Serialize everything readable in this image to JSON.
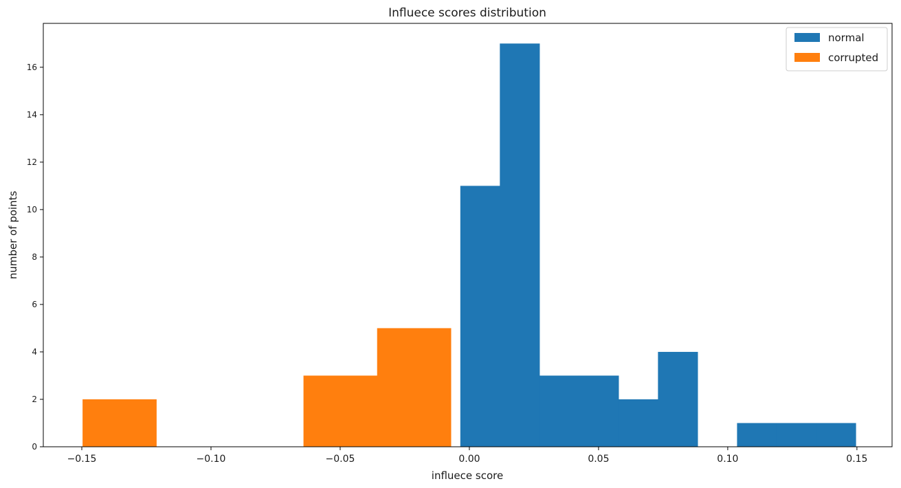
{
  "chart_data": {
    "type": "bar",
    "title": "Influece scores distribution",
    "xlabel": "influece score",
    "ylabel": "number of points",
    "xlim": [
      -0.1649,
      0.1636
    ],
    "ylim": [
      0,
      17.85
    ],
    "xticks": [
      -0.15,
      -0.1,
      -0.05,
      0.0,
      0.05,
      0.1,
      0.15
    ],
    "xtick_labels": [
      "−0.15",
      "−0.10",
      "−0.05",
      "0.00",
      "0.05",
      "0.10",
      "0.15"
    ],
    "yticks": [
      0,
      2,
      4,
      6,
      8,
      10,
      12,
      14,
      16
    ],
    "ytick_labels": [
      "0",
      "2",
      "4",
      "6",
      "8",
      "10",
      "12",
      "14",
      "16"
    ],
    "grid": false,
    "legend_position": "top-right",
    "series": [
      {
        "name": "normal",
        "color": "#1f77b4",
        "bins": [
          {
            "start": -0.0035,
            "end": 0.0118,
            "count": 11
          },
          {
            "start": 0.0118,
            "end": 0.0271,
            "count": 17
          },
          {
            "start": 0.0271,
            "end": 0.0424,
            "count": 3
          },
          {
            "start": 0.0424,
            "end": 0.0577,
            "count": 3
          },
          {
            "start": 0.0577,
            "end": 0.073,
            "count": 2
          },
          {
            "start": 0.073,
            "end": 0.0883,
            "count": 4
          },
          {
            "start": 0.0883,
            "end": 0.1036,
            "count": 0
          },
          {
            "start": 0.1036,
            "end": 0.1189,
            "count": 1
          },
          {
            "start": 0.1189,
            "end": 0.1342,
            "count": 1
          },
          {
            "start": 0.1342,
            "end": 0.1495,
            "count": 1
          }
        ]
      },
      {
        "name": "corrupted",
        "color": "#ff7f0e",
        "bins": [
          {
            "start": -0.1497,
            "end": -0.1212,
            "count": 2
          },
          {
            "start": -0.1212,
            "end": -0.0927,
            "count": 0
          },
          {
            "start": -0.0927,
            "end": -0.0642,
            "count": 0
          },
          {
            "start": -0.0642,
            "end": -0.0357,
            "count": 3
          },
          {
            "start": -0.0357,
            "end": -0.0072,
            "count": 5
          }
        ]
      }
    ]
  }
}
